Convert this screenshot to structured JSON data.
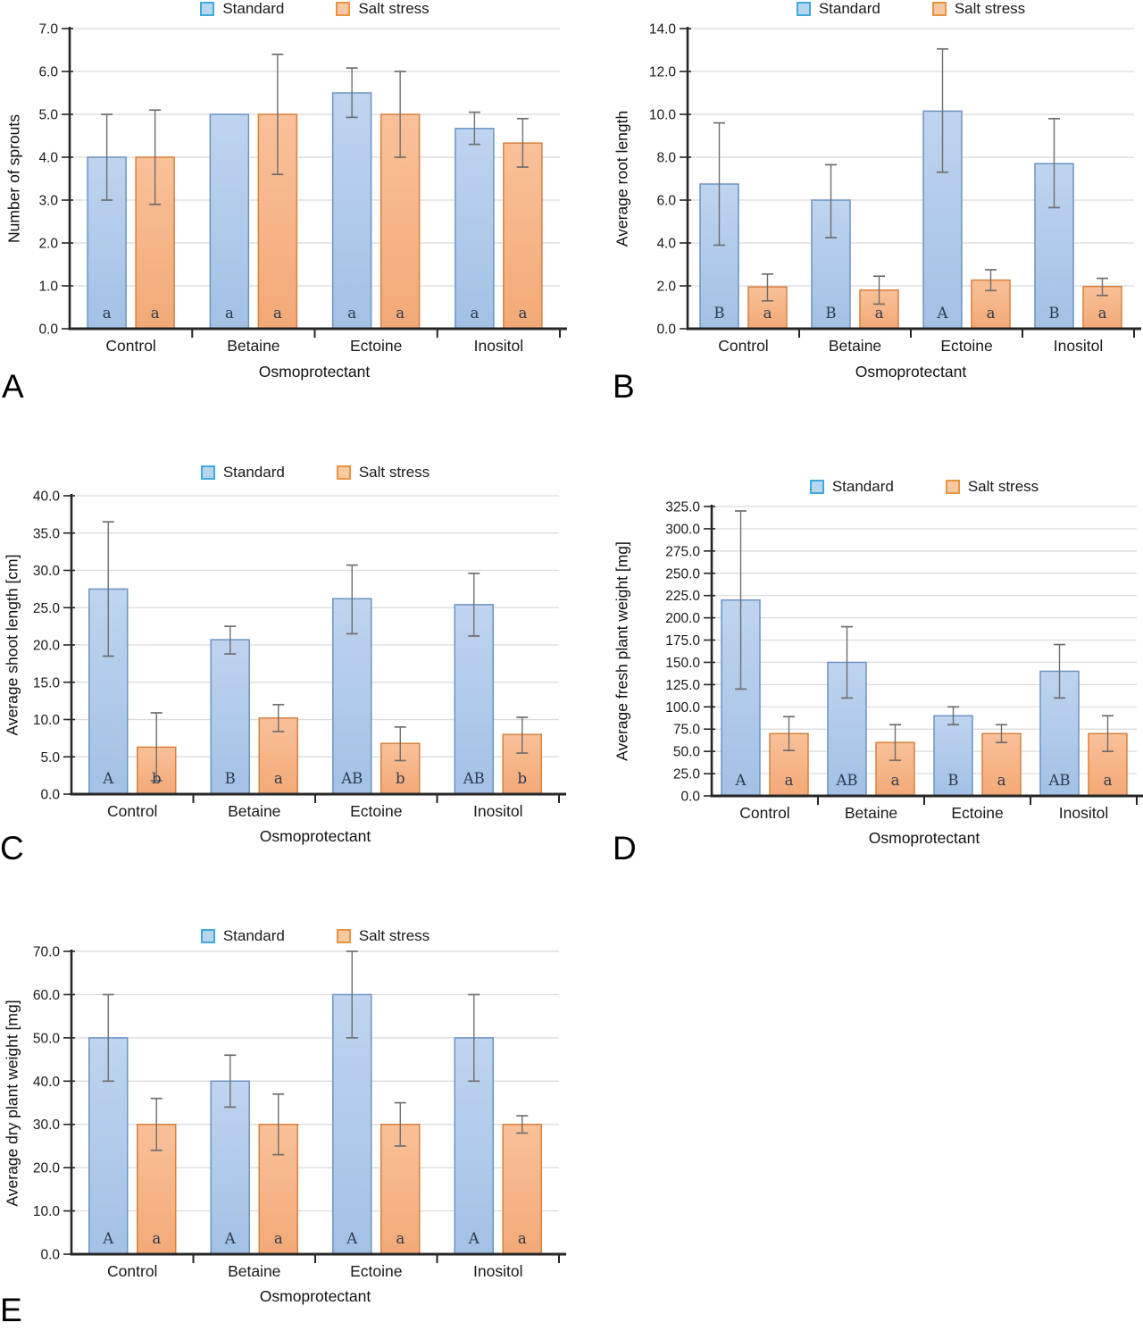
{
  "colors": {
    "standard_fill": "#a2c1e5",
    "standard_fill_light": "#bfd4ef",
    "standard_border": "#6b94c3",
    "salt_fill": "#f3a977",
    "salt_fill_light": "#f9c199",
    "salt_border": "#d8803d",
    "legend_standard_fill": "#b5d6ee",
    "legend_standard_border": "#3fa9dc",
    "legend_salt_fill": "#f8c8a2",
    "legend_salt_border": "#e9953f",
    "error_bar": "#6e6e6e",
    "grid": "#d9d9d9",
    "axis": "#262626",
    "sig_letter": "#2c3a50"
  },
  "chart_data": [
    {
      "type": "bar",
      "panel": "A",
      "title": "",
      "xlabel": "Osmoprotectant",
      "ylabel": "Number of sprouts",
      "categories": [
        "Control",
        "Betaine",
        "Ectoine",
        "Inositol"
      ],
      "ylim": [
        0,
        7
      ],
      "ytick_step": 1,
      "grid": true,
      "legend_position": "top",
      "series": [
        {
          "name": "Standard",
          "values": [
            4.0,
            5.0,
            5.5,
            4.67
          ],
          "err_low": [
            3.0,
            null,
            4.93,
            4.3
          ],
          "err_high": [
            5.0,
            null,
            6.08,
            5.05
          ],
          "sig_letters": [
            "a",
            "a",
            "a",
            "a"
          ]
        },
        {
          "name": "Salt stress",
          "values": [
            4.0,
            5.0,
            5.0,
            4.33
          ],
          "err_low": [
            2.9,
            3.6,
            4.0,
            3.77
          ],
          "err_high": [
            5.1,
            6.4,
            6.0,
            4.9
          ],
          "sig_letters": [
            "a",
            "a",
            "a",
            "a"
          ]
        }
      ]
    },
    {
      "type": "bar",
      "panel": "B",
      "title": "",
      "xlabel": "Osmoprotectant",
      "ylabel": "Average root length",
      "categories": [
        "Control",
        "Betaine",
        "Ectoine",
        "Inositol"
      ],
      "ylim": [
        0,
        14
      ],
      "ytick_step": 2,
      "grid": true,
      "legend_position": "top",
      "series": [
        {
          "name": "Standard",
          "values": [
            6.75,
            6.0,
            10.15,
            7.7
          ],
          "err_low": [
            3.9,
            4.25,
            7.3,
            5.65
          ],
          "err_high": [
            9.6,
            7.65,
            13.05,
            9.8
          ],
          "sig_letters": [
            "B",
            "B",
            "A",
            "B"
          ]
        },
        {
          "name": "Salt stress",
          "values": [
            1.95,
            1.8,
            2.27,
            1.97
          ],
          "err_low": [
            1.3,
            1.15,
            1.78,
            1.55
          ],
          "err_high": [
            2.55,
            2.45,
            2.75,
            2.35
          ],
          "sig_letters": [
            "a",
            "a",
            "a",
            "a"
          ]
        }
      ]
    },
    {
      "type": "bar",
      "panel": "C",
      "title": "",
      "xlabel": "Osmoprotectant",
      "ylabel": "Average shoot length [cm]",
      "categories": [
        "Control",
        "Betaine",
        "Ectoine",
        "Inositol"
      ],
      "ylim": [
        0,
        40
      ],
      "ytick_step": 5,
      "grid": true,
      "legend_position": "top",
      "series": [
        {
          "name": "Standard",
          "values": [
            27.5,
            20.7,
            26.2,
            25.4
          ],
          "err_low": [
            18.5,
            18.8,
            21.5,
            21.2
          ],
          "err_high": [
            36.5,
            22.5,
            30.7,
            29.6
          ],
          "sig_letters": [
            "A",
            "B",
            "AB",
            "AB"
          ]
        },
        {
          "name": "Salt stress",
          "values": [
            6.3,
            10.2,
            6.8,
            8.0
          ],
          "err_low": [
            1.8,
            8.4,
            4.5,
            5.5
          ],
          "err_high": [
            10.9,
            12.0,
            9.0,
            10.3
          ],
          "sig_letters": [
            "b",
            "a",
            "b",
            "b"
          ]
        }
      ]
    },
    {
      "type": "bar",
      "panel": "D",
      "title": "",
      "xlabel": "Osmoprotectant",
      "ylabel": "Average fresh plant weight [mg]",
      "categories": [
        "Control",
        "Betaine",
        "Ectoine",
        "Inositol"
      ],
      "ylim": [
        0,
        325
      ],
      "ytick_step": 25,
      "grid": true,
      "legend_position": "top",
      "series": [
        {
          "name": "Standard",
          "values": [
            220,
            150,
            90,
            140
          ],
          "err_low": [
            120,
            110,
            80,
            110
          ],
          "err_high": [
            320,
            190,
            100,
            170
          ],
          "sig_letters": [
            "A",
            "AB",
            "B",
            "AB"
          ]
        },
        {
          "name": "Salt stress",
          "values": [
            70,
            60,
            70,
            70
          ],
          "err_low": [
            51,
            40,
            60,
            50
          ],
          "err_high": [
            89,
            80,
            80,
            90
          ],
          "sig_letters": [
            "a",
            "a",
            "a",
            "a"
          ]
        }
      ]
    },
    {
      "type": "bar",
      "panel": "E",
      "title": "",
      "xlabel": "Osmoprotectant",
      "ylabel": "Average dry plant weight [mg]",
      "categories": [
        "Control",
        "Betaine",
        "Ectoine",
        "Inositol"
      ],
      "ylim": [
        0,
        70
      ],
      "ytick_step": 10,
      "grid": true,
      "legend_position": "top",
      "series": [
        {
          "name": "Standard",
          "values": [
            50,
            40,
            60,
            50
          ],
          "err_low": [
            40,
            34,
            50,
            40
          ],
          "err_high": [
            60,
            46,
            70,
            60
          ],
          "sig_letters": [
            "A",
            "A",
            "A",
            "A"
          ]
        },
        {
          "name": "Salt stress",
          "values": [
            30,
            30,
            30,
            30
          ],
          "err_low": [
            24,
            23,
            25,
            28
          ],
          "err_high": [
            36,
            37,
            35,
            32
          ],
          "sig_letters": [
            "a",
            "a",
            "a",
            "a"
          ]
        }
      ]
    }
  ]
}
